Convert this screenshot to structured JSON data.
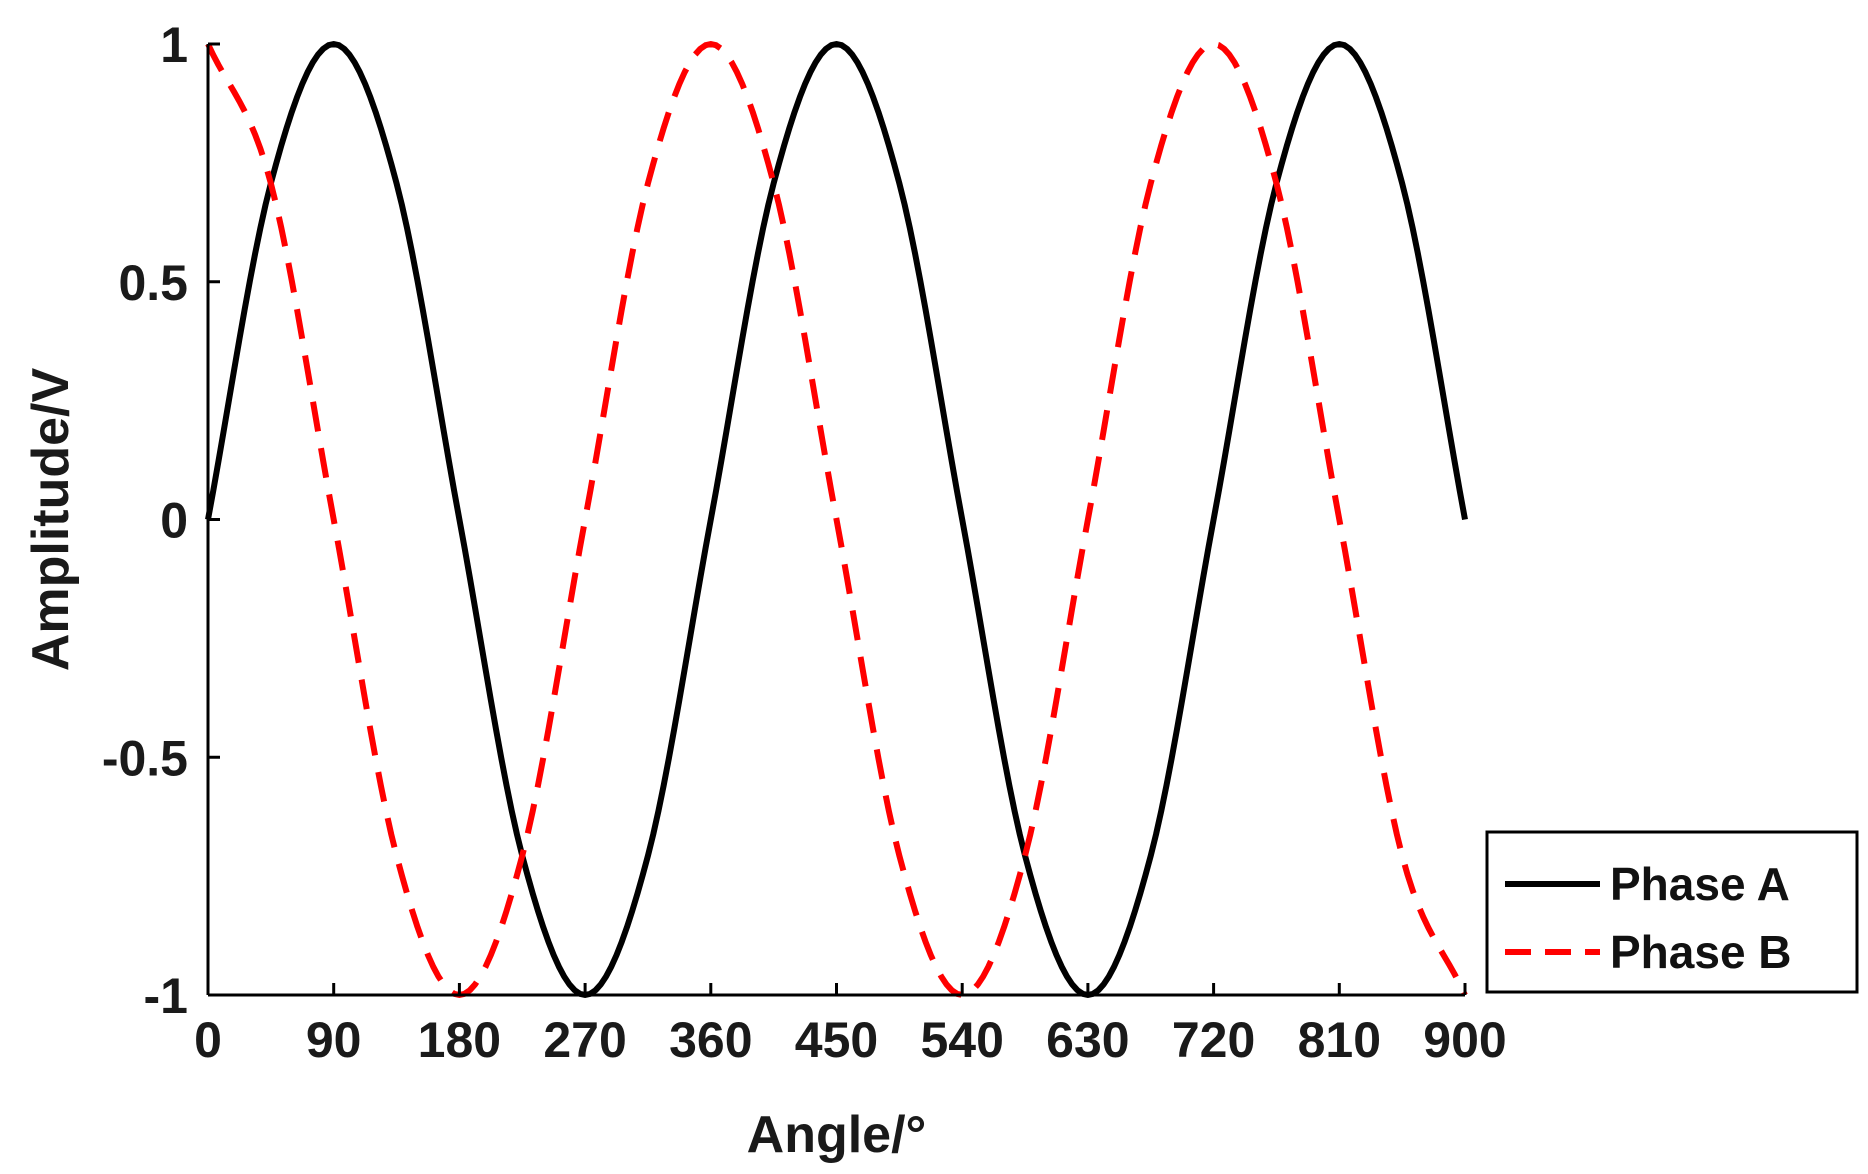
{
  "chart_data": {
    "type": "line",
    "xlabel": "Angle/°",
    "ylabel": "Amplitude/V",
    "xlim": [
      0,
      900
    ],
    "ylim": [
      -1,
      1
    ],
    "xticks": [
      "0",
      "90",
      "180",
      "270",
      "360",
      "450",
      "540",
      "630",
      "720",
      "810",
      "900"
    ],
    "yticks": [
      "1",
      "0.5",
      "0",
      "-0.5",
      "-1"
    ],
    "grid": false,
    "legend_position": "bottom-right",
    "series": [
      {
        "name": "Phase A",
        "style": "solid",
        "color": "#000000",
        "x": [
          0,
          45,
          90,
          135,
          180,
          225,
          270,
          315,
          360,
          405,
          450,
          495,
          540,
          585,
          630,
          675,
          720,
          765,
          810,
          855,
          900
        ],
        "y": [
          0,
          0.707,
          1,
          0.707,
          0,
          -0.707,
          -1,
          -0.707,
          0,
          0.707,
          1,
          0.707,
          0,
          -0.707,
          -1,
          -0.707,
          0,
          0.707,
          1,
          0.707,
          0
        ]
      },
      {
        "name": "Phase B",
        "style": "dashed",
        "color": "#ff0000",
        "x": [
          0,
          45,
          90,
          135,
          180,
          225,
          270,
          315,
          360,
          405,
          450,
          495,
          540,
          585,
          630,
          675,
          720,
          765,
          810,
          855,
          900
        ],
        "y": [
          1,
          0.707,
          0,
          -0.707,
          -1,
          -0.707,
          0,
          0.707,
          1,
          0.707,
          0,
          -0.707,
          -1,
          -0.707,
          0,
          0.707,
          1,
          0.707,
          0,
          -0.707,
          -1
        ]
      }
    ]
  }
}
